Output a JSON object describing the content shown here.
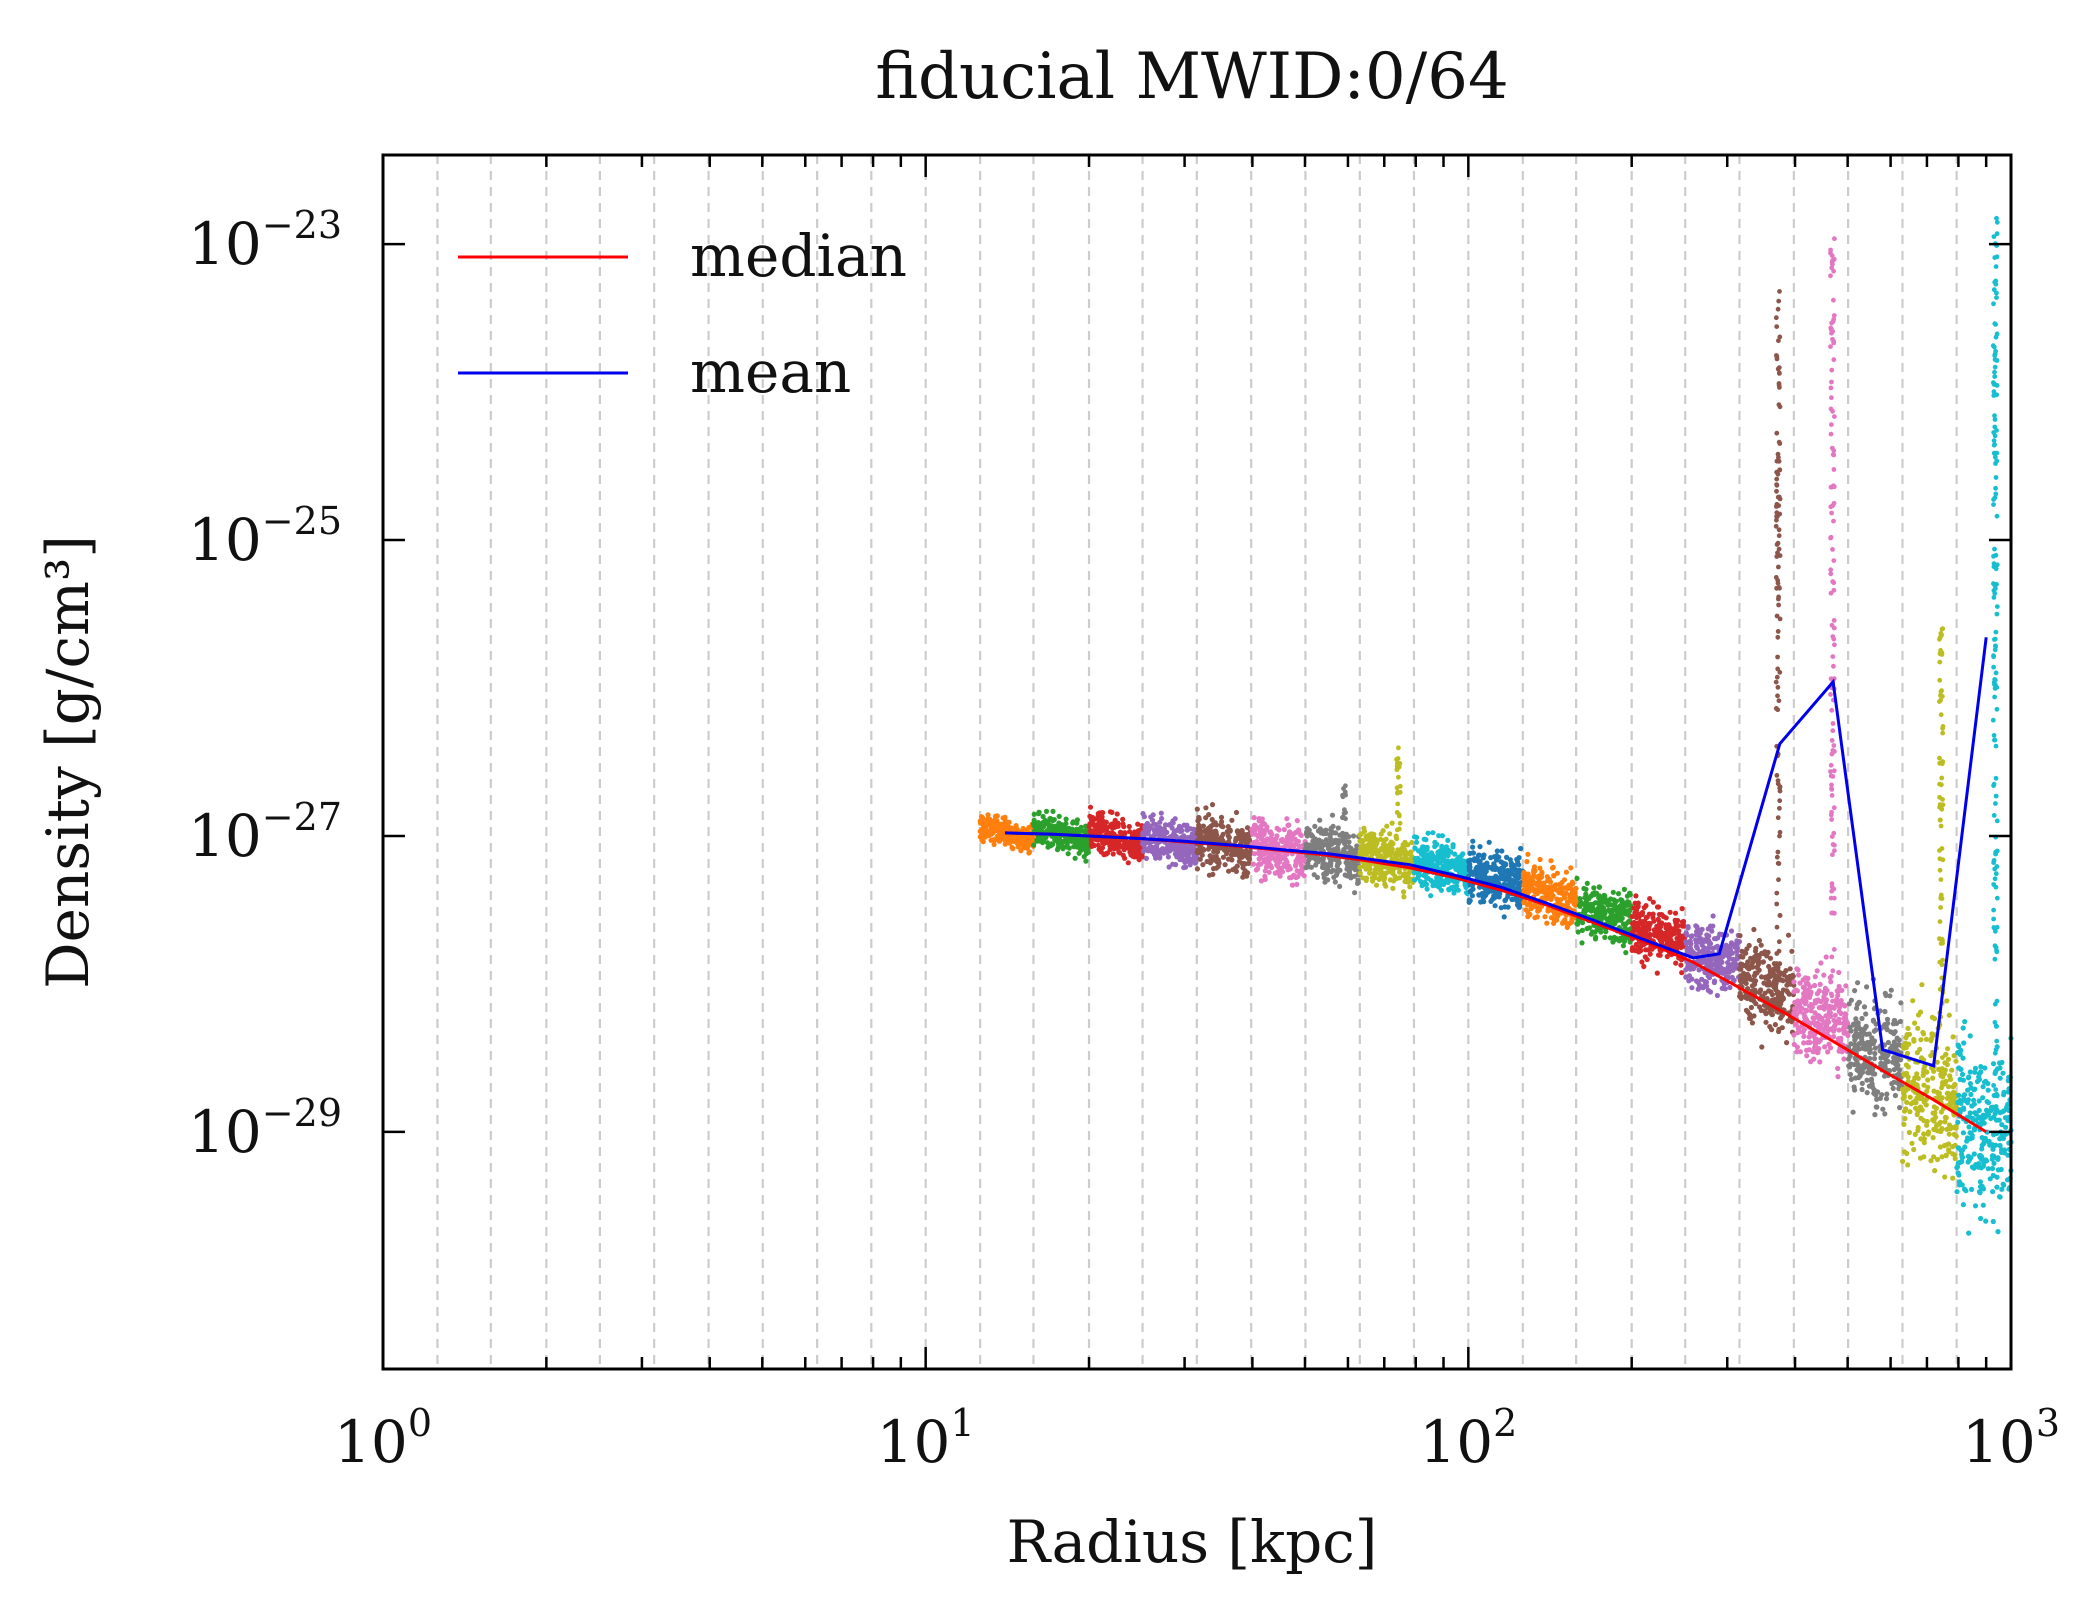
{
  "chart_data": {
    "type": "scatter",
    "title": "fiducial MWID:0/64",
    "xlabel": "Radius [kpc]",
    "ylabel": "Density [g/cm³]",
    "xscale": "log",
    "yscale": "log",
    "xlim": [
      1,
      1000
    ],
    "ylim": [
      2.5e-31,
      4e-23
    ],
    "grid": "vertical dashed lines at radial bin edges",
    "legend_position": "top-left",
    "x_ticks": [
      {
        "base": "10",
        "exp": "0",
        "value": 1
      },
      {
        "base": "10",
        "exp": "1",
        "value": 10
      },
      {
        "base": "10",
        "exp": "2",
        "value": 100
      },
      {
        "base": "10",
        "exp": "3",
        "value": 1000
      }
    ],
    "y_ticks": [
      {
        "base": "10",
        "exp": "−23",
        "value": 1e-23
      },
      {
        "base": "10",
        "exp": "−25",
        "value": 1e-25
      },
      {
        "base": "10",
        "exp": "−27",
        "value": 1e-27
      },
      {
        "base": "10",
        "exp": "−29",
        "value": 1e-29
      }
    ],
    "bin_edges_kpc": [
      1.26,
      1.58,
      2.0,
      2.51,
      3.16,
      3.98,
      5.01,
      6.31,
      7.94,
      10.0,
      12.6,
      15.8,
      20.0,
      25.1,
      31.6,
      39.8,
      50.1,
      63.1,
      79.4,
      100,
      126,
      158,
      200,
      251,
      316,
      398,
      501,
      631,
      794
    ],
    "series": [
      {
        "name": "median",
        "color": "#ff0000",
        "x": [
          14,
          17,
          20,
          25,
          30,
          38,
          45,
          55,
          65,
          78,
          95,
          115,
          140,
          170,
          210,
          260,
          315,
          385,
          470,
          580,
          720,
          900
        ],
        "y": [
          1.05e-27,
          1.03e-27,
          1e-27,
          9.6e-28,
          9.1e-28,
          8.5e-28,
          8e-28,
          7.4e-28,
          6.8e-28,
          6.1e-28,
          5.2e-28,
          4.3e-28,
          3.4e-28,
          2.6e-28,
          1.95e-28,
          1.4e-28,
          9.5e-29,
          6.3e-29,
          4.1e-29,
          2.6e-29,
          1.65e-29,
          1e-29
        ]
      },
      {
        "name": "mean",
        "color": "#0000ee",
        "x": [
          14,
          17,
          20,
          25,
          30,
          38,
          45,
          55,
          65,
          78,
          95,
          115,
          140,
          170,
          210,
          260,
          290,
          375,
          470,
          580,
          720,
          900
        ],
        "y": [
          1.05e-27,
          1.03e-27,
          1e-27,
          9.6e-28,
          9.2e-28,
          8.6e-28,
          8.1e-28,
          7.6e-28,
          7e-28,
          6.4e-28,
          5.4e-28,
          4.5e-28,
          3.5e-28,
          2.7e-28,
          2e-28,
          1.5e-28,
          1.6e-28,
          4.2e-27,
          1.1e-26,
          3.6e-29,
          2.8e-29,
          2.2e-26
        ]
      }
    ],
    "scatter_bins": [
      {
        "r_lo": 12.6,
        "r_hi": 15.8,
        "color": "#ff7f0e",
        "center": 1.05e-27,
        "spread": 0.08,
        "outlier_max": 1.2e-27
      },
      {
        "r_lo": 15.8,
        "r_hi": 20.0,
        "color": "#2ca02c",
        "center": 1.02e-27,
        "spread": 0.1,
        "outlier_max": 1.3e-27
      },
      {
        "r_lo": 20.0,
        "r_hi": 25.1,
        "color": "#d62728",
        "center": 9.8e-28,
        "spread": 0.12,
        "outlier_max": 1.3e-27
      },
      {
        "r_lo": 25.1,
        "r_hi": 31.6,
        "color": "#9467bd",
        "center": 9.3e-28,
        "spread": 0.14,
        "outlier_max": 1.8e-27
      },
      {
        "r_lo": 31.6,
        "r_hi": 39.8,
        "color": "#8c564b",
        "center": 8.7e-28,
        "spread": 0.16,
        "outlier_max": 2.6e-27
      },
      {
        "r_lo": 39.8,
        "r_hi": 50.1,
        "color": "#e377c2",
        "center": 8.1e-28,
        "spread": 0.17,
        "outlier_max": 1.8e-27
      },
      {
        "r_lo": 50.1,
        "r_hi": 63.1,
        "color": "#7f7f7f",
        "center": 7.6e-28,
        "spread": 0.17,
        "outlier_max": 2.6e-27
      },
      {
        "r_lo": 63.1,
        "r_hi": 79.4,
        "color": "#bcbd22",
        "center": 7e-28,
        "spread": 0.17,
        "outlier_max": 4e-27
      },
      {
        "r_lo": 79.4,
        "r_hi": 100,
        "color": "#17becf",
        "center": 6.2e-28,
        "spread": 0.16,
        "outlier_max": 1e-27
      },
      {
        "r_lo": 100,
        "r_hi": 126,
        "color": "#1f77b4",
        "center": 5.1e-28,
        "spread": 0.16,
        "outlier_max": 8e-28
      },
      {
        "r_lo": 126,
        "r_hi": 158,
        "color": "#ff7f0e",
        "center": 4e-28,
        "spread": 0.16,
        "outlier_max": 6.5e-28
      },
      {
        "r_lo": 158,
        "r_hi": 200,
        "color": "#2ca02c",
        "center": 3e-28,
        "spread": 0.17,
        "outlier_max": 5.5e-28
      },
      {
        "r_lo": 200,
        "r_hi": 251,
        "color": "#d62728",
        "center": 2.2e-28,
        "spread": 0.18,
        "outlier_max": 6e-28
      },
      {
        "r_lo": 251,
        "r_hi": 316,
        "color": "#9467bd",
        "center": 1.5e-28,
        "spread": 0.2,
        "outlier_max": 3e-28
      },
      {
        "r_lo": 316,
        "r_hi": 398,
        "color": "#8c564b",
        "center": 9.5e-29,
        "spread": 0.24,
        "outlier_max": 5e-24
      },
      {
        "r_lo": 398,
        "r_hi": 501,
        "color": "#e377c2",
        "center": 6e-29,
        "spread": 0.28,
        "outlier_max": 1.1e-23
      },
      {
        "r_lo": 501,
        "r_hi": 631,
        "color": "#7f7f7f",
        "center": 3.5e-29,
        "spread": 0.36,
        "outlier_max": 1e-28
      },
      {
        "r_lo": 631,
        "r_hi": 794,
        "color": "#bcbd22",
        "center": 1.8e-29,
        "spread": 0.45,
        "outlier_max": 3e-26
      },
      {
        "r_lo": 794,
        "r_hi": 1000,
        "color": "#17becf",
        "center": 1.1e-29,
        "spread": 0.55,
        "outlier_max": 1.5e-23
      }
    ]
  }
}
